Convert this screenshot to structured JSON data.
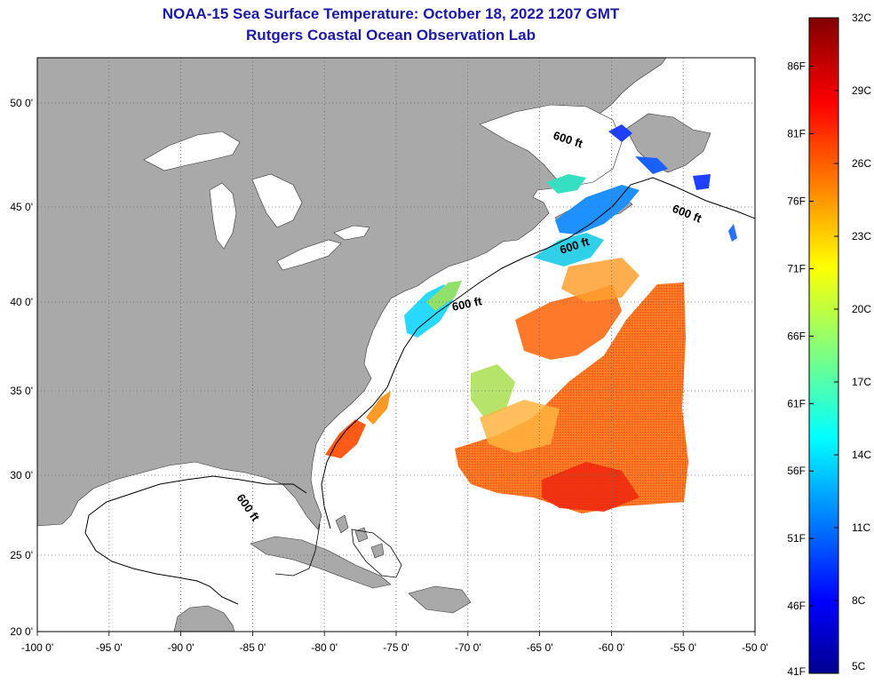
{
  "title": "NOAA-15 Sea Surface Temperature:  October 18, 2022 1207 GMT",
  "subtitle": "Rutgers Coastal Ocean Observation Lab",
  "lon_ticks": [
    "-100 0'",
    "-95 0'",
    "-90 0'",
    "-85 0'",
    "-80 0'",
    "-75 0'",
    "-70 0'",
    "-65 0'",
    "-60 0'",
    "-55 0'",
    "-50 0'"
  ],
  "lat_ticks": [
    "50 0'",
    "45 0'",
    "40 0'",
    "35 0'",
    "30 0'",
    "25 0'",
    "20 0'"
  ],
  "contour_label": "600 ft",
  "colorbar": {
    "fahrenheit": [
      "86F",
      "81F",
      "76F",
      "71F",
      "66F",
      "61F",
      "56F",
      "51F",
      "46F",
      "41F"
    ],
    "celsius": [
      "32C",
      "29C",
      "26C",
      "23C",
      "20C",
      "17C",
      "14C",
      "11C",
      "8C",
      "5C"
    ],
    "min_c": 5,
    "max_c": 32
  },
  "colors": {
    "land": "#a9a9a9",
    "ocean": "#ffffff",
    "title": "#1a1aa6"
  }
}
